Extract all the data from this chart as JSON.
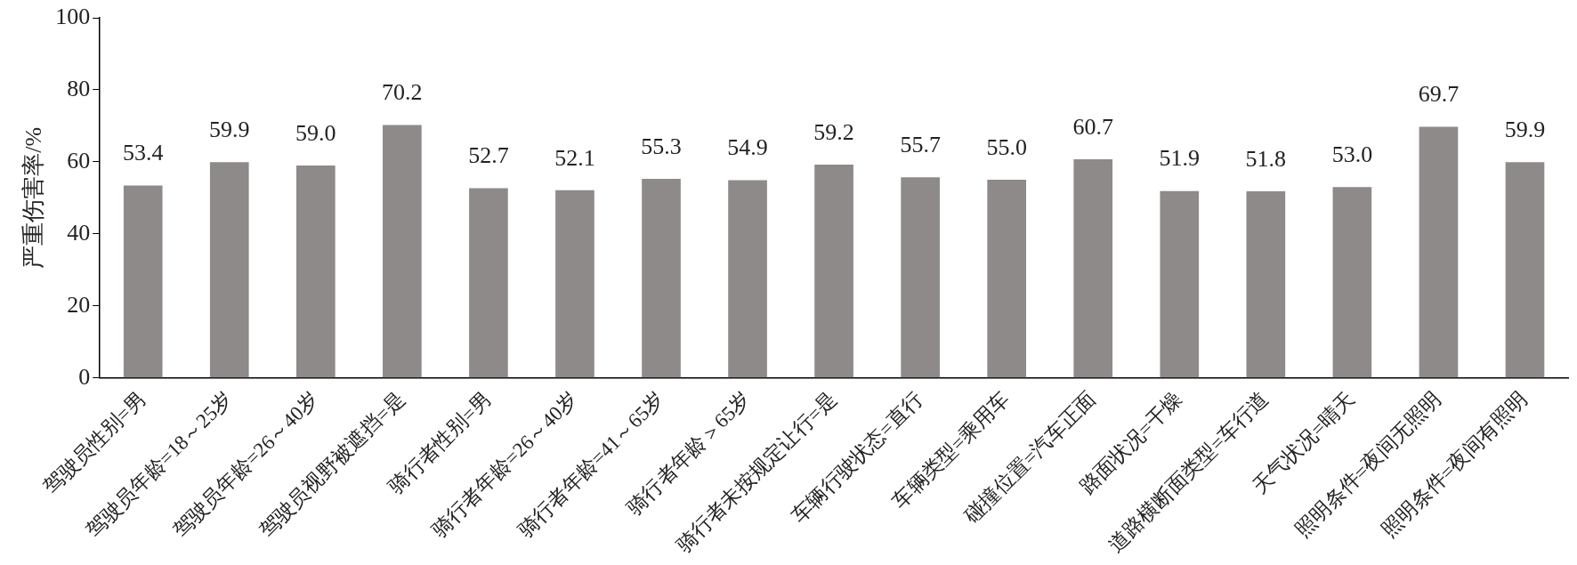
{
  "chart_data": {
    "type": "bar",
    "ylabel": "严重伤害率/%",
    "categories": [
      "驾驶员性别=男",
      "驾驶员年龄=18～25岁",
      "驾驶员年龄=26～40岁",
      "驾驶员视野被遮挡=是",
      "骑行者性别=男",
      "骑行者年龄=26～40岁",
      "骑行者年龄=41～65岁",
      "骑行者年龄＞65岁",
      "骑行者未按规定让行=是",
      "车辆行驶状态=直行",
      "车辆类型=乘用车",
      "碰撞位置=汽车正面",
      "路面状况=干燥",
      "道路横断面类型=车行道",
      "天气状况=晴天",
      "照明条件=夜间无照明",
      "照明条件=夜间有照明"
    ],
    "values": [
      53.4,
      59.9,
      59.0,
      70.2,
      52.7,
      52.1,
      55.3,
      54.9,
      59.2,
      55.7,
      55.0,
      60.7,
      51.9,
      51.8,
      53.0,
      69.7,
      59.9
    ],
    "value_labels": [
      "53.4",
      "59.9",
      "59.0",
      "70.2",
      "52.7",
      "52.1",
      "55.3",
      "54.9",
      "59.2",
      "55.7",
      "55.0",
      "60.7",
      "51.9",
      "51.8",
      "53.0",
      "69.7",
      "59.9"
    ],
    "color": "#8e8a8a",
    "ylim": [
      0,
      100
    ],
    "yticks": [
      0,
      20,
      40,
      60,
      80,
      100
    ],
    "grid": false,
    "legend": false
  }
}
